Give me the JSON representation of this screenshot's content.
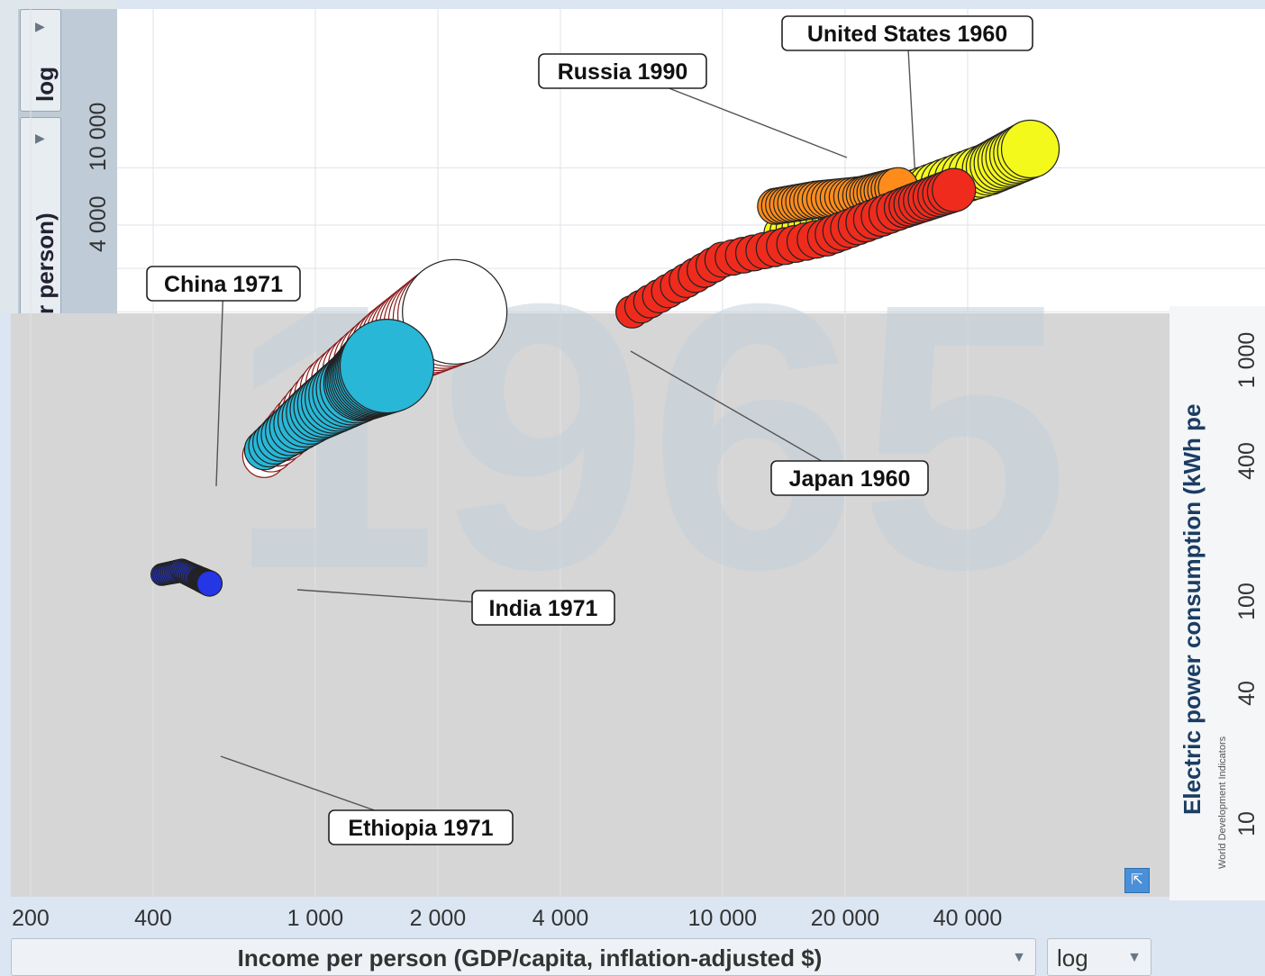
{
  "chart_data": {
    "type": "scatter",
    "x_axis": {
      "label": "Income per person (GDP/capita, inflation-adjusted $)",
      "scale": "log",
      "ticks": [
        200,
        400,
        1000,
        2000,
        4000,
        10000,
        20000,
        40000
      ],
      "tick_labels": [
        "200",
        "400",
        "1 000",
        "2 000",
        "4 000",
        "10 000",
        "20 000",
        "40 000"
      ]
    },
    "y_axis_left": {
      "label": "r person)",
      "scale": "log",
      "tick_labels": [
        "4 000",
        "10 000"
      ]
    },
    "y_axis_right": {
      "label": "Electric power consumption (kWh pe",
      "scale": "log",
      "tick_labels": [
        "10",
        "40",
        "100",
        "400",
        "1 000"
      ]
    },
    "source_label": "World Development Indicators",
    "scale_selector": "log",
    "annotations": [
      "United States 1960",
      "Russia 1990",
      "China 1971",
      "Japan 1960",
      "India 1971",
      "Ethiopia 1971"
    ],
    "series": [
      {
        "name": "United States",
        "color": "#f4f91c",
        "points": [
          [
            14000,
            3500
          ],
          [
            20000,
            4800
          ],
          [
            30000,
            6700
          ],
          [
            45000,
            9800
          ],
          [
            57000,
            13500
          ]
        ]
      },
      {
        "name": "Russia",
        "color": "#ff8c1a",
        "points": [
          [
            13500,
            5400
          ],
          [
            17000,
            6000
          ],
          [
            22000,
            6400
          ],
          [
            27000,
            7300
          ]
        ]
      },
      {
        "name": "Japan",
        "color": "#ef2b1d",
        "points": [
          [
            6000,
            1000
          ],
          [
            10000,
            2300
          ],
          [
            18000,
            3300
          ],
          [
            28000,
            5300
          ],
          [
            37000,
            7000
          ]
        ]
      },
      {
        "name": "China",
        "color": "#ffffff",
        "points": [
          [
            750,
            100
          ],
          [
            1100,
            290
          ],
          [
            1600,
            600
          ],
          [
            2200,
            1000
          ]
        ]
      },
      {
        "name": "India",
        "color": "#28b7d7",
        "points": [
          [
            750,
            110
          ],
          [
            1000,
            200
          ],
          [
            1300,
            320
          ],
          [
            1500,
            420
          ]
        ]
      },
      {
        "name": "Ethiopia",
        "color": "#2436e6",
        "points": [
          [
            420,
            15
          ],
          [
            470,
            16
          ],
          [
            520,
            14
          ],
          [
            550,
            13
          ]
        ]
      }
    ]
  }
}
